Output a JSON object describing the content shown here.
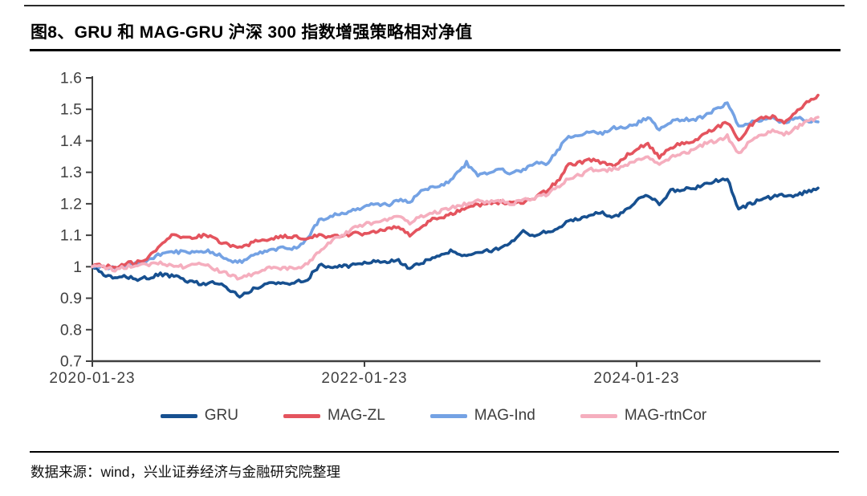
{
  "page": {
    "title": "图8、GRU 和 MAG-GRU 沪深 300 指数增强策略相对净值",
    "source_note": "数据来源：wind，兴业证券经济与金融研究院整理"
  },
  "chart_data": {
    "type": "line",
    "title": "图8、GRU 和 MAG-GRU 沪深 300 指数增强策略相对净值",
    "xlabel": "",
    "ylabel": "",
    "ylim": [
      0.7,
      1.6
    ],
    "grid": false,
    "legend_position": "bottom",
    "axis_color": "#3F3F3F",
    "tick_label_color": "#404040",
    "y_ticks": [
      0.7,
      0.8,
      0.9,
      1.0,
      1.1,
      1.2,
      1.3,
      1.4,
      1.5,
      1.6
    ],
    "y_tick_labels": [
      "0.7",
      "0.8",
      "0.9",
      "1",
      "1.1",
      "1.2",
      "1.3",
      "1.4",
      "1.5",
      "1.6"
    ],
    "x_tick_labels": [
      "2020-01-23",
      "2022-01-23",
      "2024-01-23"
    ],
    "x_tick_month_index": [
      0,
      24,
      48
    ],
    "x": [
      "2020-01",
      "2020-02",
      "2020-03",
      "2020-04",
      "2020-05",
      "2020-06",
      "2020-07",
      "2020-08",
      "2020-09",
      "2020-10",
      "2020-11",
      "2020-12",
      "2021-01",
      "2021-02",
      "2021-03",
      "2021-04",
      "2021-05",
      "2021-06",
      "2021-07",
      "2021-08",
      "2021-09",
      "2021-10",
      "2021-11",
      "2021-12",
      "2022-01",
      "2022-02",
      "2022-03",
      "2022-04",
      "2022-05",
      "2022-06",
      "2022-07",
      "2022-08",
      "2022-09",
      "2022-10",
      "2022-11",
      "2022-12",
      "2023-01",
      "2023-02",
      "2023-03",
      "2023-04",
      "2023-05",
      "2023-06",
      "2023-07",
      "2023-08",
      "2023-09",
      "2023-10",
      "2023-11",
      "2023-12",
      "2024-01",
      "2024-02",
      "2024-03",
      "2024-04",
      "2024-05",
      "2024-06",
      "2024-07",
      "2024-08",
      "2024-09",
      "2024-10",
      "2024-11",
      "2024-12",
      "2025-01",
      "2025-02",
      "2025-03",
      "2025-04",
      "2025-05"
    ],
    "series": [
      {
        "name": "GRU",
        "color": "#175090",
        "values": [
          1.0,
          0.975,
          0.96,
          0.97,
          0.96,
          0.965,
          0.975,
          0.97,
          0.96,
          0.95,
          0.945,
          0.95,
          0.93,
          0.905,
          0.925,
          0.94,
          0.95,
          0.945,
          0.955,
          0.96,
          1.005,
          1.0,
          1.0,
          1.005,
          1.01,
          1.02,
          1.015,
          1.02,
          0.995,
          1.01,
          1.03,
          1.045,
          1.05,
          1.03,
          1.045,
          1.05,
          1.06,
          1.08,
          1.11,
          1.1,
          1.11,
          1.12,
          1.145,
          1.15,
          1.17,
          1.17,
          1.155,
          1.18,
          1.21,
          1.23,
          1.2,
          1.24,
          1.245,
          1.25,
          1.26,
          1.275,
          1.28,
          1.18,
          1.2,
          1.215,
          1.22,
          1.23,
          1.225,
          1.24,
          1.25
        ]
      },
      {
        "name": "MAG-ZL",
        "color": "#E4545E",
        "values": [
          1.0,
          1.005,
          0.995,
          1.01,
          1.015,
          1.03,
          1.07,
          1.1,
          1.09,
          1.095,
          1.1,
          1.085,
          1.07,
          1.06,
          1.075,
          1.085,
          1.09,
          1.095,
          1.095,
          1.09,
          1.1,
          1.095,
          1.1,
          1.105,
          1.105,
          1.11,
          1.12,
          1.13,
          1.1,
          1.13,
          1.15,
          1.16,
          1.17,
          1.19,
          1.195,
          1.2,
          1.205,
          1.2,
          1.205,
          1.22,
          1.24,
          1.27,
          1.325,
          1.33,
          1.34,
          1.33,
          1.32,
          1.35,
          1.375,
          1.39,
          1.35,
          1.38,
          1.39,
          1.4,
          1.42,
          1.44,
          1.46,
          1.4,
          1.45,
          1.47,
          1.475,
          1.46,
          1.49,
          1.52,
          1.545
        ]
      },
      {
        "name": "MAG-Ind",
        "color": "#74A2E4",
        "values": [
          1.0,
          1.0,
          0.995,
          1.005,
          1.01,
          1.02,
          1.04,
          1.05,
          1.045,
          1.05,
          1.05,
          1.04,
          1.02,
          1.015,
          1.03,
          1.045,
          1.055,
          1.06,
          1.06,
          1.09,
          1.15,
          1.16,
          1.17,
          1.18,
          1.19,
          1.2,
          1.195,
          1.21,
          1.205,
          1.24,
          1.25,
          1.26,
          1.29,
          1.33,
          1.29,
          1.3,
          1.31,
          1.295,
          1.31,
          1.33,
          1.325,
          1.37,
          1.41,
          1.42,
          1.43,
          1.425,
          1.44,
          1.445,
          1.455,
          1.475,
          1.435,
          1.46,
          1.47,
          1.465,
          1.48,
          1.5,
          1.52,
          1.445,
          1.46,
          1.465,
          1.47,
          1.455,
          1.475,
          1.465,
          1.46
        ]
      },
      {
        "name": "MAG-rtnCor",
        "color": "#F5AEBE",
        "values": [
          1.0,
          0.998,
          0.99,
          1.0,
          1.005,
          1.008,
          1.01,
          1.005,
          1.0,
          1.008,
          1.005,
          0.99,
          0.975,
          0.963,
          0.975,
          0.99,
          1.0,
          0.995,
          0.995,
          1.01,
          1.05,
          1.08,
          1.1,
          1.12,
          1.135,
          1.14,
          1.15,
          1.16,
          1.14,
          1.16,
          1.17,
          1.18,
          1.19,
          1.2,
          1.21,
          1.205,
          1.21,
          1.2,
          1.21,
          1.22,
          1.23,
          1.25,
          1.28,
          1.29,
          1.31,
          1.305,
          1.31,
          1.32,
          1.337,
          1.35,
          1.32,
          1.35,
          1.36,
          1.37,
          1.39,
          1.4,
          1.415,
          1.36,
          1.4,
          1.42,
          1.43,
          1.42,
          1.44,
          1.46,
          1.475
        ]
      }
    ]
  }
}
